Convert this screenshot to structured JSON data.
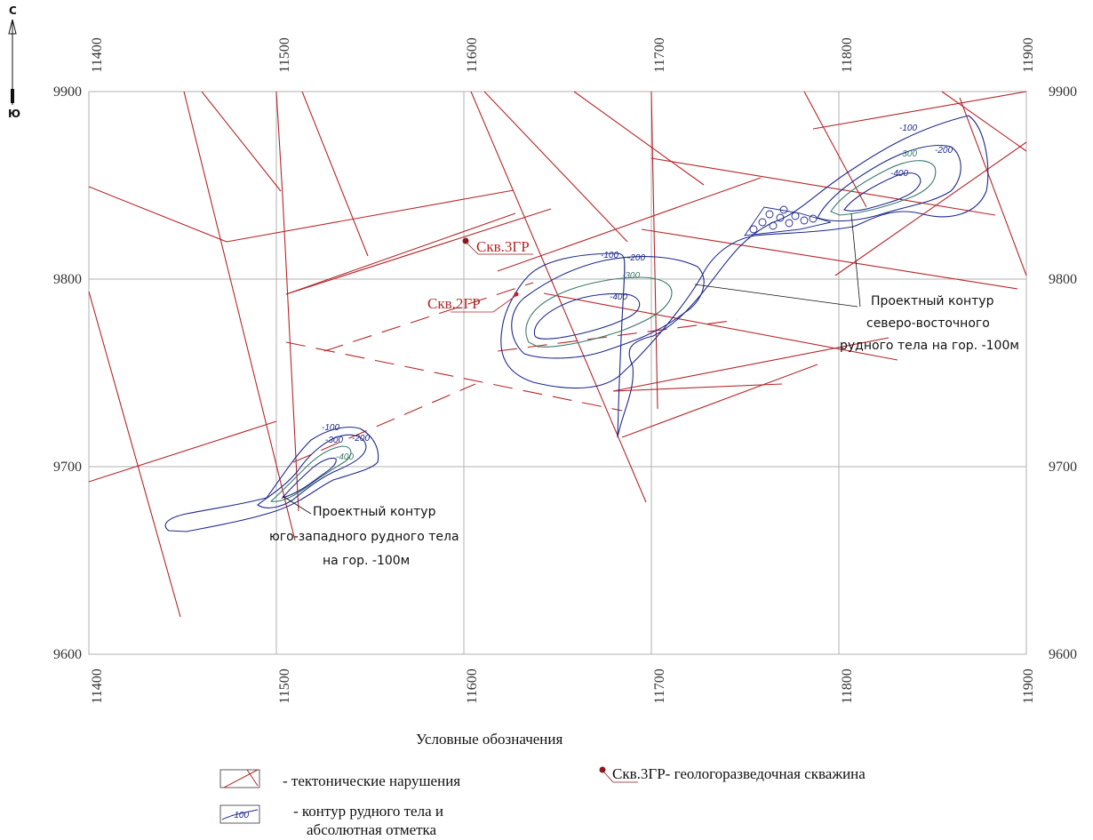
{
  "compass": {
    "north": "С",
    "south": "Ю"
  },
  "axes": {
    "x_ticks": [
      "11400",
      "11500",
      "11600",
      "11700",
      "11800",
      "11900"
    ],
    "y_ticks": [
      "9900",
      "9800",
      "9700",
      "9600"
    ]
  },
  "wells": [
    {
      "label": "Скв.3ГР"
    },
    {
      "label": "Скв.2ГР"
    }
  ],
  "contour_labels": {
    "ne": [
      "-100",
      "-200",
      "-300",
      "-400",
      "-100",
      "-200",
      "-300",
      "-400"
    ],
    "sw": [
      "-100",
      "-200",
      "-300",
      "-400"
    ]
  },
  "annotations": {
    "ne_project": [
      "Проектный контур",
      "северо-восточного",
      "рудного тела на гор. -100м"
    ],
    "sw_project": [
      "Проектный контур",
      "юго-западного рудного тела",
      "на гор. -100м"
    ]
  },
  "legend": {
    "title": "Условные обозначения",
    "faults": "- тектонические нарушения",
    "well_sample": "Скв.3ГР",
    "well_desc": "- геологоразведочная скважина",
    "contour_sample": "-100",
    "contour_desc_1": "- контур рудного тела и",
    "contour_desc_2": "абсолютная отметка"
  },
  "colors": {
    "fault": "#b5262a",
    "contour": "#1f2a8a",
    "contour_inner": "#3a7a6a",
    "grid": "#b0b0b0"
  }
}
